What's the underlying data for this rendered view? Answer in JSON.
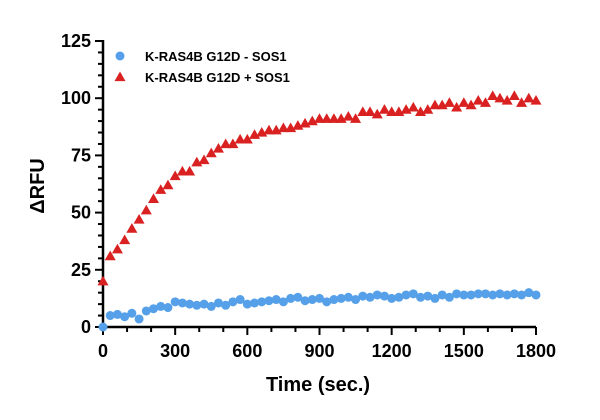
{
  "chart_data": {
    "type": "scatter",
    "title": "",
    "xlabel": "Time (sec.)",
    "ylabel": "ΔRFU",
    "xlim": [
      0,
      1800
    ],
    "ylim": [
      0,
      125
    ],
    "xticks": [
      "0",
      "300",
      "600",
      "900",
      "1200",
      "1500",
      "1800"
    ],
    "yticks": [
      "0",
      "25",
      "50",
      "75",
      "100",
      "125"
    ],
    "grid": false,
    "legend_position": "top-left",
    "series": [
      {
        "name": "K-RAS4B G12D - SOS1",
        "marker": "circle",
        "color": "#55a0e8",
        "x": [
          0,
          30,
          60,
          90,
          120,
          150,
          180,
          210,
          240,
          270,
          300,
          330,
          360,
          390,
          420,
          450,
          480,
          510,
          540,
          570,
          600,
          630,
          660,
          690,
          720,
          750,
          780,
          810,
          840,
          870,
          900,
          930,
          960,
          990,
          1020,
          1050,
          1080,
          1110,
          1140,
          1170,
          1200,
          1230,
          1260,
          1290,
          1320,
          1350,
          1380,
          1410,
          1440,
          1470,
          1500,
          1530,
          1560,
          1590,
          1620,
          1650,
          1680,
          1710,
          1740,
          1770,
          1800
        ],
        "y": [
          0,
          5,
          5.5,
          4.5,
          6,
          3.5,
          7,
          8,
          9,
          8.5,
          11,
          10.5,
          10,
          9.5,
          10,
          9,
          10.5,
          9.5,
          11,
          12,
          10,
          10.5,
          11,
          11.5,
          12,
          11,
          12.5,
          13,
          11.5,
          12,
          12.5,
          11,
          12,
          12.5,
          13,
          12,
          13.5,
          13,
          14,
          13.5,
          12.5,
          13,
          14,
          14.5,
          13,
          13.5,
          12.5,
          14,
          13,
          14.5,
          14,
          14,
          14.5,
          14.5,
          14,
          14.5,
          14,
          14.5,
          14,
          15,
          14
        ]
      },
      {
        "name": "K-RAS4B G12D + SOS1",
        "marker": "triangle",
        "color": "#d92121",
        "x": [
          0,
          30,
          60,
          90,
          120,
          150,
          180,
          210,
          240,
          270,
          300,
          330,
          360,
          390,
          420,
          450,
          480,
          510,
          540,
          570,
          600,
          630,
          660,
          690,
          720,
          750,
          780,
          810,
          840,
          870,
          900,
          930,
          960,
          990,
          1020,
          1050,
          1080,
          1110,
          1140,
          1170,
          1200,
          1230,
          1260,
          1290,
          1320,
          1350,
          1380,
          1410,
          1440,
          1470,
          1500,
          1530,
          1560,
          1590,
          1620,
          1650,
          1680,
          1710,
          1740,
          1770,
          1800
        ],
        "y": [
          20,
          31,
          34,
          38,
          43,
          47,
          51,
          56,
          60,
          62,
          66,
          68,
          68,
          72,
          73,
          76,
          78,
          80,
          80,
          82,
          82,
          84,
          85,
          86,
          86,
          87,
          87,
          88,
          89,
          90,
          91,
          91,
          91,
          91,
          92,
          91,
          94,
          94,
          93,
          95,
          94,
          94,
          95,
          96,
          94,
          95,
          97,
          97,
          98,
          96,
          98,
          97,
          99,
          98,
          101,
          100,
          99,
          101,
          98,
          100,
          99
        ]
      }
    ]
  }
}
